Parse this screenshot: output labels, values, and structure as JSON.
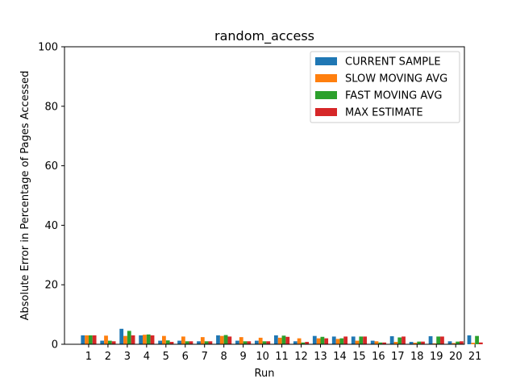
{
  "chart_data": {
    "type": "bar",
    "title": "random_access",
    "xlabel": "Run",
    "ylabel": "Absolute Error in Percentage of Pages Accessed",
    "ylim": [
      0,
      100
    ],
    "yticks": [
      0,
      20,
      40,
      60,
      80,
      100
    ],
    "legend_position": "top-right",
    "grid": false,
    "categories": [
      "1",
      "2",
      "3",
      "4",
      "5",
      "6",
      "7",
      "8",
      "9",
      "10",
      "11",
      "12",
      "13",
      "14",
      "15",
      "16",
      "17",
      "18",
      "19",
      "20",
      "21"
    ],
    "series": [
      {
        "name": "CURRENT SAMPLE",
        "color": "#1f77b4",
        "values": [
          3.0,
          1.2,
          5.2,
          3.0,
          1.2,
          1.2,
          1.0,
          3.0,
          1.2,
          1.2,
          3.0,
          1.0,
          2.8,
          2.6,
          2.6,
          1.2,
          2.7,
          0.8,
          2.7,
          1.0,
          3.0
        ]
      },
      {
        "name": "SLOW MOVING AVG",
        "color": "#ff7f0e",
        "values": [
          3.0,
          2.9,
          2.8,
          3.2,
          2.8,
          2.6,
          2.4,
          2.8,
          2.4,
          2.2,
          2.2,
          2.0,
          2.0,
          1.8,
          1.2,
          1.0,
          0.8,
          0.5,
          0.3,
          0.4,
          0.5
        ]
      },
      {
        "name": "FAST MOVING AVG",
        "color": "#2ca02c",
        "values": [
          3.0,
          1.2,
          4.5,
          3.3,
          1.3,
          1.0,
          1.0,
          3.1,
          1.0,
          1.0,
          2.9,
          0.6,
          2.5,
          2.0,
          2.6,
          0.6,
          2.3,
          0.9,
          2.6,
          0.9,
          2.8
        ]
      },
      {
        "name": "MAX ESTIMATE",
        "color": "#d62728",
        "values": [
          3.0,
          1.0,
          3.0,
          3.0,
          0.8,
          1.0,
          1.0,
          2.6,
          1.0,
          1.0,
          2.5,
          0.8,
          2.0,
          2.6,
          2.6,
          0.6,
          2.6,
          0.9,
          2.6,
          1.0,
          0.6
        ]
      }
    ]
  }
}
